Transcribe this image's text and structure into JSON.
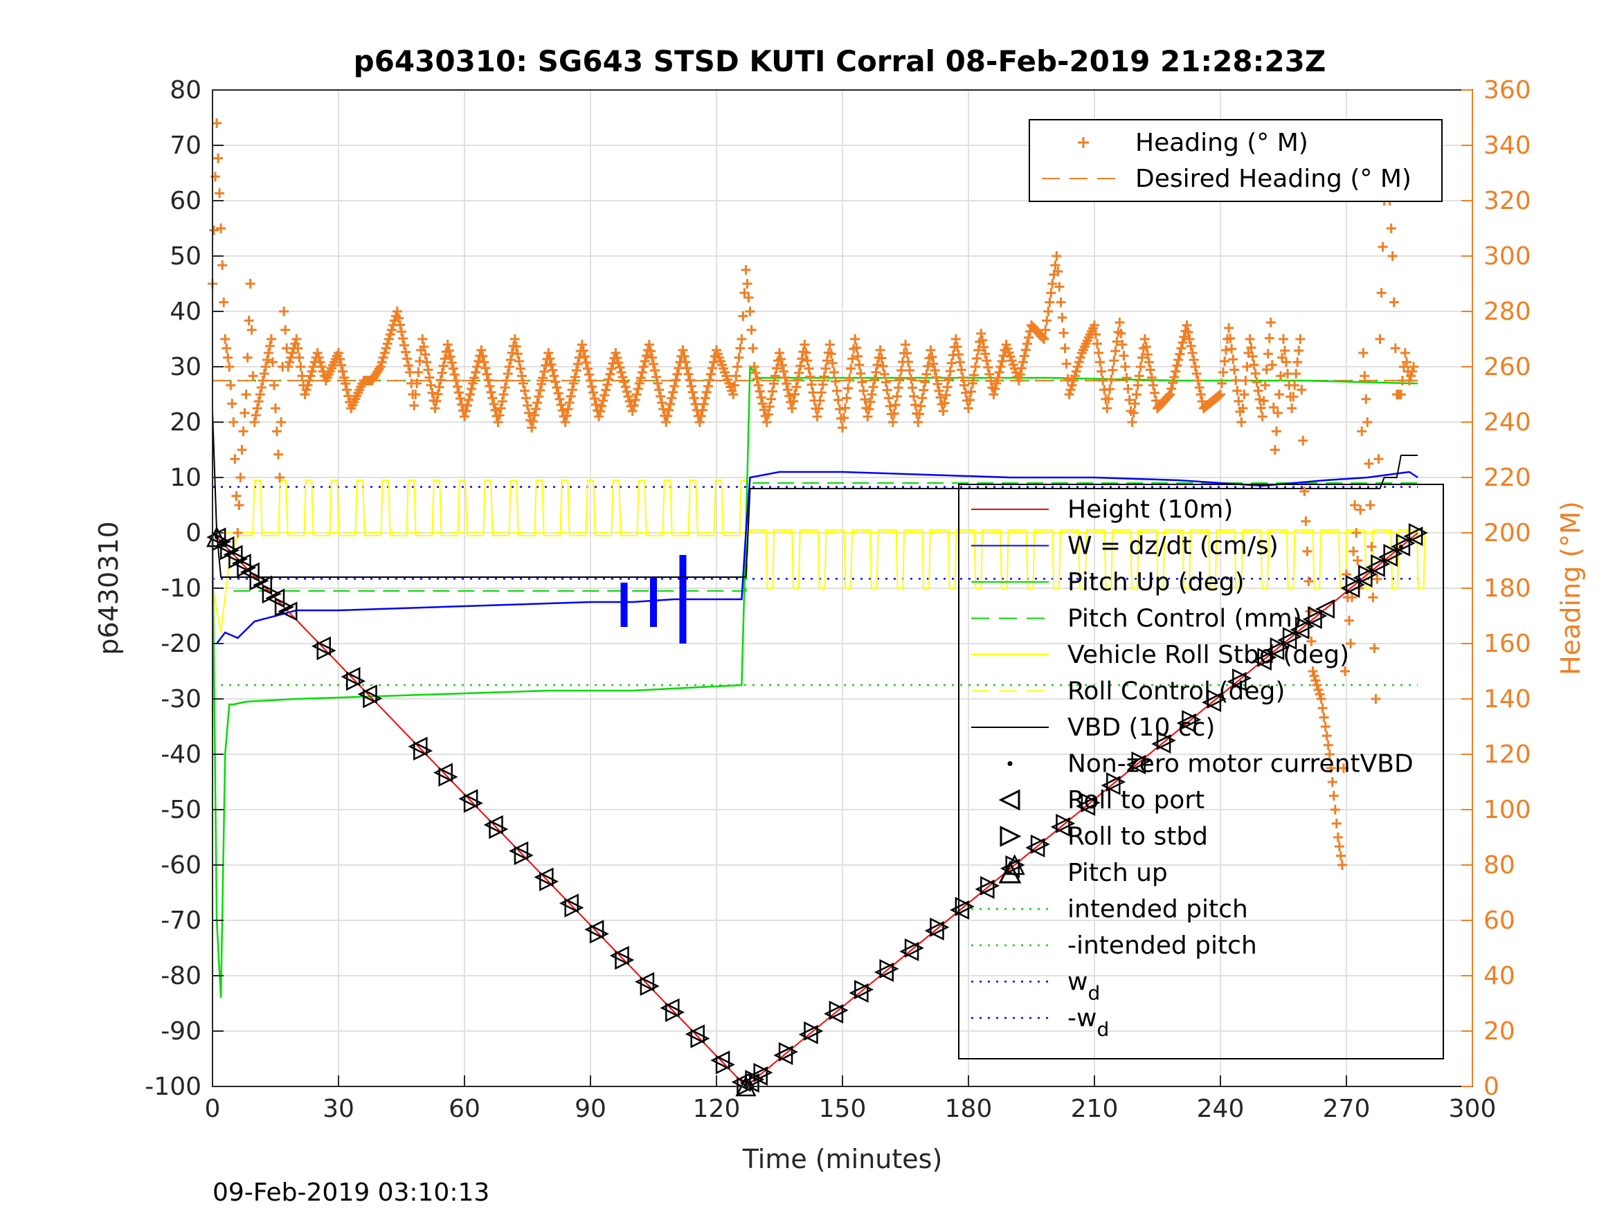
{
  "chart_data": {
    "type": "line",
    "title": "p6430310: SG643 STSD KUTI Corral 08-Feb-2019 21:28:23Z",
    "xlabel": "Time (minutes)",
    "ylabel_left": "p6430310",
    "ylabel_right": "Heading (°M)",
    "footer": "09-Feb-2019 03:10:13",
    "xlim": [
      0,
      300
    ],
    "ylim_left": [
      -100,
      80
    ],
    "ylim_right": [
      0,
      360
    ],
    "x_ticks": [
      "0",
      "30",
      "60",
      "90",
      "120",
      "150",
      "180",
      "210",
      "240",
      "270",
      "300"
    ],
    "y_left_ticks": [
      "80",
      "70",
      "60",
      "50",
      "40",
      "30",
      "20",
      "10",
      "0",
      "-10",
      "-20",
      "-30",
      "-40",
      "-50",
      "-60",
      "-70",
      "-80",
      "-90",
      "-100"
    ],
    "y_right_ticks": [
      "360",
      "340",
      "320",
      "300",
      "280",
      "260",
      "240",
      "220",
      "200",
      "180",
      "160",
      "140",
      "120",
      "100",
      "80",
      "60",
      "40",
      "20",
      "0"
    ],
    "grid": true,
    "legend_heading": {
      "placement": "top-right",
      "entries": [
        {
          "label": "Heading (° M)",
          "color": "#f07f23",
          "style": "plus"
        },
        {
          "label": "Desired Heading (° M)",
          "color": "#f07f23",
          "style": "dash"
        }
      ]
    },
    "legend_main": {
      "placement": "bottom-right",
      "entries": [
        {
          "label": "Height (10m)",
          "color": "#ff0000",
          "style": "line"
        },
        {
          "label": "W = dz/dt (cm/s)",
          "color": "#0000ff",
          "style": "line"
        },
        {
          "label": "Pitch Up (deg)",
          "color": "#00dd00",
          "style": "line"
        },
        {
          "label": "Pitch Control (mm)",
          "color": "#00dd00",
          "style": "dash"
        },
        {
          "label": "Vehicle Roll Stbd (deg)",
          "color": "#ffff00",
          "style": "line"
        },
        {
          "label": "Roll Control (deg)",
          "color": "#ffff00",
          "style": "dash"
        },
        {
          "label": "VBD (10 cc)",
          "color": "#000000",
          "style": "line"
        },
        {
          "label": "Non-zero motor currentVBD",
          "color": "#000000",
          "style": "dot"
        },
        {
          "label": "Roll to port",
          "color": "#000000",
          "style": "tri-left"
        },
        {
          "label": "Roll to stbd",
          "color": "#000000",
          "style": "tri-right"
        },
        {
          "label": "Pitch up",
          "color": "#000000",
          "style": "tri-up"
        },
        {
          "label": "intended pitch",
          "color": "#00dd00",
          "style": "dotted"
        },
        {
          "label": "-intended pitch",
          "color": "#00dd00",
          "style": "dotted"
        },
        {
          "label": "w",
          "sub": "d",
          "color": "#0000ff",
          "style": "dotted"
        },
        {
          "label": "-w",
          "sub": "d",
          "color": "#0000ff",
          "style": "dotted"
        }
      ]
    },
    "series": [
      {
        "name": "Height (10m)",
        "axis": "left",
        "color": "#ff0000",
        "x": [
          0,
          127,
          287
        ],
        "y": [
          0,
          -100,
          0
        ]
      },
      {
        "name": "W = dz/dt (cm/s)",
        "axis": "left",
        "color": "#0000ff",
        "x": [
          1,
          3,
          6,
          10,
          15,
          20,
          30,
          50,
          70,
          90,
          100,
          110,
          120,
          126,
          127,
          128,
          135,
          150,
          170,
          190,
          210,
          230,
          250,
          265,
          275,
          285,
          287
        ],
        "y": [
          -20,
          -18,
          -19,
          -16,
          -15,
          -14,
          -14,
          -13.5,
          -13,
          -12.5,
          -12.5,
          -12,
          -12,
          -12,
          0,
          10,
          11,
          11,
          10.5,
          10,
          10,
          9.5,
          8.5,
          9.5,
          10,
          11,
          10
        ]
      },
      {
        "name": "Pitch Up (deg)",
        "axis": "left",
        "color": "#00dd00",
        "x": [
          0,
          1,
          2,
          3,
          4,
          5,
          8,
          20,
          40,
          60,
          80,
          100,
          126,
          127,
          128,
          130,
          160,
          200,
          230,
          260,
          285,
          287
        ],
        "y": [
          0,
          -70,
          -84,
          -40,
          -31,
          -31,
          -30.5,
          -30,
          -29.5,
          -29,
          -28.5,
          -28.5,
          -27.5,
          0,
          30,
          28,
          28,
          28,
          27.5,
          27.5,
          27,
          27
        ]
      },
      {
        "name": "Pitch Control (mm)",
        "axis": "left",
        "color": "#00dd00",
        "x": [
          5,
          127,
          128,
          287
        ],
        "y": [
          -10.5,
          -10.5,
          9,
          9
        ]
      },
      {
        "name": "VBD (10 cc)",
        "axis": "left",
        "color": "#000000",
        "x": [
          0,
          1,
          2,
          127,
          128,
          278,
          279,
          282,
          283,
          287
        ],
        "y": [
          22,
          0,
          -8,
          -8,
          8,
          8,
          10,
          10,
          14,
          14
        ]
      },
      {
        "name": "intended pitch",
        "axis": "left",
        "color": "#00dd00",
        "x": [
          0,
          287
        ],
        "y": [
          27.5,
          27.5
        ]
      },
      {
        "name": "-intended pitch",
        "axis": "left",
        "color": "#00dd00",
        "x": [
          0,
          287
        ],
        "y": [
          -27.5,
          -27.5
        ]
      },
      {
        "name": "w",
        "axis": "left",
        "color": "#0000ff",
        "x": [
          0,
          287
        ],
        "y": [
          8.3,
          8.3
        ]
      },
      {
        "name": "-w",
        "axis": "left",
        "color": "#0000ff",
        "x": [
          0,
          287
        ],
        "y": [
          -8.3,
          -8.3
        ]
      },
      {
        "name": "Desired Heading (° M)",
        "axis": "right",
        "color": "#f07f23",
        "x": [
          0,
          287
        ],
        "y": [
          255,
          255
        ]
      },
      {
        "name": "Heading (° M)",
        "axis": "right",
        "color": "#f07f23",
        "x": [
          0,
          1,
          2,
          3,
          4,
          5,
          6,
          7,
          8,
          9,
          10,
          12,
          14,
          16,
          17,
          18,
          20,
          22,
          25,
          27,
          30,
          33,
          36,
          38,
          40,
          44,
          47,
          48,
          50,
          53,
          56,
          60,
          64,
          68,
          72,
          76,
          80,
          84,
          88,
          92,
          96,
          100,
          104,
          108,
          112,
          116,
          120,
          124,
          126,
          127,
          128,
          129,
          132,
          135,
          138,
          141,
          144,
          147,
          150,
          153,
          156,
          159,
          162,
          165,
          168,
          171,
          174,
          177,
          180,
          183,
          186,
          189,
          192,
          195,
          198,
          201,
          204,
          207,
          210,
          213,
          216,
          219,
          222,
          225,
          228,
          232,
          236,
          240,
          242,
          245,
          247,
          250,
          252,
          253,
          255,
          257,
          259,
          260,
          262,
          264,
          266,
          268,
          269,
          270,
          271,
          272,
          273,
          274,
          275,
          276,
          277,
          278,
          279,
          280,
          281,
          282,
          283,
          284,
          285,
          286
        ],
        "y": [
          290,
          348,
          310,
          270,
          260,
          240,
          200,
          230,
          250,
          290,
          240,
          255,
          270,
          220,
          280,
          260,
          270,
          250,
          265,
          255,
          265,
          245,
          255,
          255,
          260,
          280,
          258,
          246,
          270,
          245,
          268,
          242,
          266,
          240,
          270,
          238,
          265,
          240,
          268,
          242,
          265,
          244,
          268,
          240,
          266,
          240,
          266,
          250,
          270,
          295,
          280,
          260,
          240,
          265,
          245,
          268,
          242,
          268,
          238,
          270,
          242,
          266,
          240,
          268,
          240,
          266,
          244,
          270,
          245,
          272,
          250,
          268,
          255,
          275,
          270,
          300,
          250,
          265,
          275,
          245,
          276,
          240,
          270,
          245,
          250,
          275,
          245,
          250,
          274,
          240,
          270,
          242,
          276,
          230,
          270,
          245,
          270,
          215,
          150,
          140,
          120,
          90,
          80,
          185,
          160,
          210,
          180,
          265,
          240,
          195,
          140,
          270,
          320,
          330,
          300,
          250,
          250,
          265,
          255,
          260
        ]
      }
    ],
    "markers_roll_to_port": {
      "x": [
        1,
        3,
        5,
        7,
        9,
        12,
        15,
        18,
        26,
        33,
        37,
        49,
        55,
        61,
        67,
        73,
        79,
        85,
        91,
        97,
        103,
        109,
        115,
        121,
        126,
        128,
        130,
        136,
        142,
        148,
        154,
        160,
        166,
        172,
        178,
        184,
        190,
        196,
        202,
        208,
        214,
        220,
        226,
        232,
        238,
        244,
        250,
        253,
        256,
        259,
        262,
        265,
        271,
        274,
        277,
        280,
        283,
        286
      ]
    },
    "markers_roll_to_stbd": {
      "x": [
        2,
        4,
        6,
        8,
        11,
        14,
        17,
        27,
        34,
        38,
        50,
        56,
        62,
        68,
        74,
        80,
        86,
        92,
        98,
        104,
        110,
        116,
        122,
        127,
        129,
        131,
        137,
        143,
        149,
        155,
        161,
        167,
        173,
        179,
        185,
        191,
        197,
        203,
        209,
        215,
        221,
        227,
        233,
        239,
        245,
        251,
        254,
        257,
        260,
        263,
        272,
        275,
        278,
        281,
        284,
        287
      ]
    },
    "markers_pitch_up": {
      "x": [
        1,
        127,
        191
      ]
    },
    "motor_current_dots": {
      "x": [
        1,
        2,
        127,
        128,
        279,
        283
      ]
    }
  }
}
